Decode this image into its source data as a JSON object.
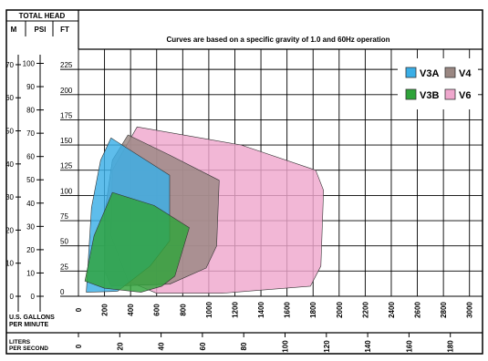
{
  "header": {
    "total_head": "TOTAL HEAD",
    "col_m": "M",
    "col_psi": "PSI",
    "col_ft": "FT",
    "note": "Curves are based on a specific gravity of 1.0 and 60Hz operation"
  },
  "axes": {
    "gpm_label_1": "U.S. GALLONS",
    "gpm_label_2": "PER MINUTE",
    "lps_label_1": "LITERS",
    "lps_label_2": "PER SECOND"
  },
  "colors": {
    "V3A": "#3aaee6",
    "V3B": "#2fa33a",
    "V4": "#9a8782",
    "V6": "#efa7cd"
  },
  "chart_data": {
    "type": "area",
    "title": "Curves are based on a specific gravity of 1.0 and 60Hz operation",
    "x_primary": {
      "label": "U.S. GALLONS PER MINUTE",
      "range": [
        0,
        3100
      ],
      "ticks": [
        0,
        200,
        400,
        600,
        800,
        1000,
        1200,
        1400,
        1600,
        1800,
        2000,
        2200,
        2400,
        2600,
        2800,
        3000
      ]
    },
    "x_secondary": {
      "label": "LITERS PER SECOND",
      "ticks": [
        0,
        20,
        40,
        60,
        80,
        100,
        120,
        140,
        160,
        180
      ]
    },
    "y_ft": {
      "label": "FT",
      "range": [
        0,
        245
      ],
      "ticks": [
        0,
        25,
        50,
        75,
        100,
        125,
        150,
        175,
        200,
        225
      ]
    },
    "y_psi": {
      "label": "PSI",
      "ticks": [
        0,
        10,
        20,
        30,
        40,
        50,
        60,
        70,
        80,
        90,
        100
      ]
    },
    "y_m": {
      "label": "M",
      "ticks": [
        0,
        10,
        20,
        30,
        40,
        50,
        60,
        70
      ]
    },
    "grid": true,
    "legend_position": "top-right",
    "series": [
      {
        "name": "V6",
        "color": "#efa7cd",
        "points": [
          [
            450,
            168
          ],
          [
            1250,
            150
          ],
          [
            1820,
            125
          ],
          [
            1880,
            105
          ],
          [
            1860,
            30
          ],
          [
            1780,
            10
          ],
          [
            1100,
            3
          ],
          [
            600,
            3
          ],
          [
            380,
            15
          ],
          [
            250,
            60
          ],
          [
            260,
            125
          ]
        ]
      },
      {
        "name": "V4",
        "color": "#9a8782",
        "points": [
          [
            380,
            160
          ],
          [
            700,
            140
          ],
          [
            1080,
            115
          ],
          [
            1060,
            50
          ],
          [
            980,
            28
          ],
          [
            700,
            12
          ],
          [
            250,
            10
          ],
          [
            200,
            25
          ],
          [
            210,
            90
          ],
          [
            260,
            135
          ]
        ]
      },
      {
        "name": "V3A",
        "color": "#3aaee6",
        "points": [
          [
            250,
            157
          ],
          [
            700,
            120
          ],
          [
            700,
            55
          ],
          [
            550,
            30
          ],
          [
            300,
            5
          ],
          [
            60,
            4
          ],
          [
            100,
            88
          ],
          [
            170,
            135
          ]
        ]
      },
      {
        "name": "V3B",
        "color": "#2fa33a",
        "points": [
          [
            260,
            103
          ],
          [
            580,
            90
          ],
          [
            850,
            68
          ],
          [
            740,
            20
          ],
          [
            640,
            10
          ],
          [
            480,
            4
          ],
          [
            200,
            8
          ],
          [
            50,
            15
          ],
          [
            120,
            60
          ]
        ]
      }
    ]
  }
}
